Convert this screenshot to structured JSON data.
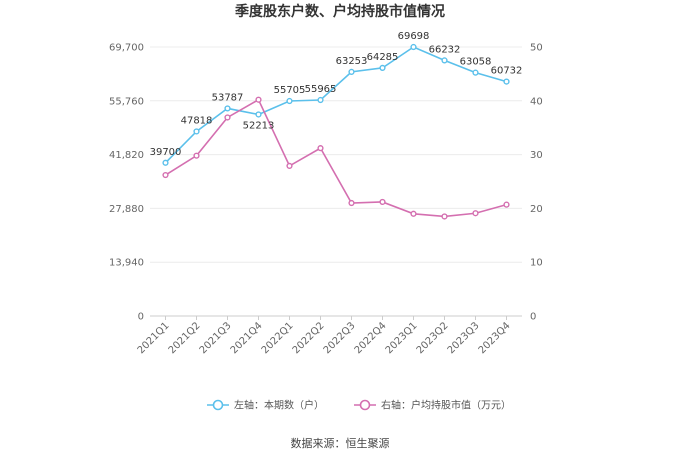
{
  "chart_data": {
    "type": "line",
    "title": "季度股东户数、户均持股市值情况",
    "categories": [
      "2021Q1",
      "2021Q2",
      "2021Q3",
      "2021Q4",
      "2022Q1",
      "2022Q2",
      "2022Q3",
      "2022Q4",
      "2023Q1",
      "2023Q2",
      "2023Q3",
      "2023Q4"
    ],
    "left_axis": {
      "ticks": [
        "0",
        "13,940",
        "27,880",
        "41,820",
        "55,760",
        "69,700"
      ],
      "min": 0,
      "max": 69700
    },
    "right_axis": {
      "ticks": [
        "0",
        "10",
        "20",
        "30",
        "40",
        "50"
      ],
      "min": 0,
      "max": 50
    },
    "series": [
      {
        "name": "左轴：本期数（户）",
        "axis": "left",
        "color": "#5bc0eb",
        "values": [
          39700,
          47818,
          53787,
          52213,
          55705,
          55965,
          63253,
          64285,
          69698,
          66232,
          63058,
          60732
        ],
        "labels": [
          "39700",
          "47818",
          "53787",
          "52213",
          "55705",
          "55965",
          "63253",
          "64285",
          "69698",
          "66232",
          "63058",
          "60732"
        ]
      },
      {
        "name": "右轴：户均持股市值（万元）",
        "axis": "right",
        "color": "#d46fb0",
        "values": [
          26.2,
          29.8,
          36.9,
          40.2,
          27.9,
          31.2,
          21.0,
          21.2,
          19.0,
          18.5,
          19.1,
          20.7
        ]
      }
    ],
    "grid": true,
    "legend_position": "bottom"
  },
  "footer": {
    "source": "数据来源：恒生聚源"
  }
}
